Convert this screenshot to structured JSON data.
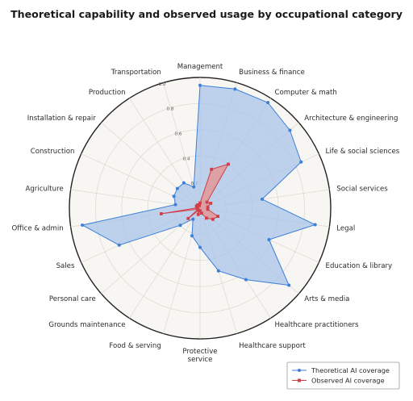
{
  "chart_data": {
    "type": "radar",
    "title": "Theoretical capability and observed usage by occupational category",
    "categories": [
      "Management",
      "Business & finance",
      "Computer & math",
      "Architecture & engineering",
      "Life & social sciences",
      "Social services",
      "Legal",
      "Education & library",
      "Arts & media",
      "Healthcare practitioners",
      "Healthcare support",
      "Protective\nservice",
      "Food & serving",
      "Grounds maintenance",
      "Personal care",
      "Sales",
      "Office & admin",
      "Agriculture",
      "Construction",
      "Installation & repair",
      "Production",
      "Transportation"
    ],
    "series": [
      {
        "name": "Theoretical AI coverage",
        "color": "#3c7fd6",
        "fill": "#a9c4ea",
        "values": [
          0.94,
          0.95,
          0.96,
          0.91,
          0.85,
          0.48,
          0.89,
          0.58,
          0.9,
          0.65,
          0.5,
          0.3,
          0.22,
          0.1,
          0.2,
          0.68,
          0.91,
          0.19,
          0.22,
          0.23,
          0.23,
          0.17
        ]
      },
      {
        "name": "Observed AI coverage",
        "color": "#d1404a",
        "fill": "#e59393",
        "values": [
          0.04,
          0.31,
          0.4,
          0.07,
          0.09,
          0.06,
          0.06,
          0.15,
          0.13,
          0.09,
          0.04,
          0.02,
          0.05,
          0.02,
          0.12,
          0.02,
          0.3,
          0.02,
          0.03,
          0.03,
          0.03,
          0.02
        ]
      }
    ],
    "rlim": [
      0,
      1
    ],
    "radial_ticks": [
      "0.2",
      "0.4",
      "0.6",
      "0.8",
      "1.0"
    ],
    "grid": true,
    "legend_position": "bottom-right"
  }
}
